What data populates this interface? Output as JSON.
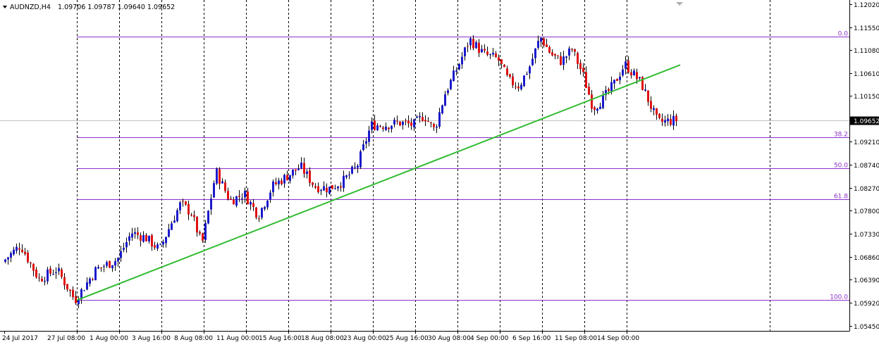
{
  "header": {
    "symbol": "AUDNZD,H4",
    "ohlc": "1.09706 1.09787 1.09640 1.09652"
  },
  "current_price_label": "1.09652",
  "colors": {
    "bull": "#1a1acc",
    "bear": "#e01010",
    "wick": "#000000",
    "fib": "#8b2fc9",
    "trend": "#33bb33",
    "grid": "#000000",
    "price_line": "#c0c0c0"
  },
  "chart_data": {
    "type": "candlestick",
    "title": "",
    "symbol": "AUDNZD",
    "timeframe": "H4",
    "ylim": [
      1.054,
      1.1202
    ],
    "grid": "vertical dashed",
    "y_ticks": [
      "1.12020",
      "1.11550",
      "1.11080",
      "1.10610",
      "1.10150",
      "1.09680",
      "1.09210",
      "1.08740",
      "1.08270",
      "1.07800",
      "1.07330",
      "1.06860",
      "1.06390",
      "1.05920",
      "1.05450"
    ],
    "x_ticks": [
      "24 Jul 2017",
      "27 Jul 08:00",
      "1 Aug 00:00",
      "3 Aug 16:00",
      "8 Aug 08:00",
      "11 Aug 00:00",
      "15 Aug 16:00",
      "18 Aug 08:00",
      "23 Aug 00:00",
      "25 Aug 16:00",
      "30 Aug 08:00",
      "4 Sep 00:00",
      "6 Sep 16:00",
      "11 Sep 08:00",
      "14 Sep 00:00"
    ],
    "fibonacci": [
      {
        "label": "0.0",
        "price": 1.1136
      },
      {
        "label": "38.2",
        "price": 1.093
      },
      {
        "label": "50.0",
        "price": 1.0867
      },
      {
        "label": "61.8",
        "price": 1.0803
      },
      {
        "label": "100.0",
        "price": 1.0597
      }
    ],
    "trendline": {
      "from": {
        "x": "27 Jul 08:00",
        "y": 1.0597
      },
      "to": {
        "x": "15 Sep 04:00",
        "y": 1.1078
      }
    },
    "current_price": 1.09652,
    "price_path": [
      {
        "x": "24 Jul 2017",
        "y": 1.0675
      },
      {
        "x": "25 Jul",
        "y": 1.071
      },
      {
        "x": "26 Jul",
        "y": 1.064
      },
      {
        "x": "27 Jul 00:00",
        "y": 1.066
      },
      {
        "x": "27 Jul 08:00",
        "y": 1.0597
      },
      {
        "x": "31 Jul",
        "y": 1.066
      },
      {
        "x": "1 Aug 00:00",
        "y": 1.068
      },
      {
        "x": "2 Aug",
        "y": 1.0735
      },
      {
        "x": "3 Aug",
        "y": 1.0725
      },
      {
        "x": "3 Aug 16:00",
        "y": 1.07
      },
      {
        "x": "4 Aug",
        "y": 1.075
      },
      {
        "x": "7 Aug",
        "y": 1.0795
      },
      {
        "x": "8 Aug 00:00",
        "y": 1.0775
      },
      {
        "x": "8 Aug 08:00",
        "y": 1.071
      },
      {
        "x": "9 Aug",
        "y": 1.086
      },
      {
        "x": "10 Aug",
        "y": 1.08
      },
      {
        "x": "11 Aug 00:00",
        "y": 1.0815
      },
      {
        "x": "14 Aug",
        "y": 1.077
      },
      {
        "x": "15 Aug",
        "y": 1.083
      },
      {
        "x": "15 Aug 16:00",
        "y": 1.085
      },
      {
        "x": "16 Aug",
        "y": 1.087
      },
      {
        "x": "17 Aug",
        "y": 1.083
      },
      {
        "x": "18 Aug 08:00",
        "y": 1.0825
      },
      {
        "x": "21 Aug",
        "y": 1.084
      },
      {
        "x": "22 Aug",
        "y": 1.087
      },
      {
        "x": "23 Aug 00:00",
        "y": 1.0955
      },
      {
        "x": "24 Aug",
        "y": 1.0955
      },
      {
        "x": "25 Aug",
        "y": 1.096
      },
      {
        "x": "25 Aug 16:00",
        "y": 1.0955
      },
      {
        "x": "28 Aug",
        "y": 1.0975
      },
      {
        "x": "29 Aug",
        "y": 1.0945
      },
      {
        "x": "29 Aug 12:00",
        "y": 1.102
      },
      {
        "x": "30 Aug 08:00",
        "y": 1.1065
      },
      {
        "x": "31 Aug",
        "y": 1.113
      },
      {
        "x": "1 Sep",
        "y": 1.11
      },
      {
        "x": "4 Sep 00:00",
        "y": 1.109
      },
      {
        "x": "5 Sep",
        "y": 1.1045
      },
      {
        "x": "5 Sep 12:00",
        "y": 1.1035
      },
      {
        "x": "6 Sep 00:00",
        "y": 1.1075
      },
      {
        "x": "6 Sep 16:00",
        "y": 1.1135
      },
      {
        "x": "7 Sep",
        "y": 1.11
      },
      {
        "x": "8 Sep",
        "y": 1.1085
      },
      {
        "x": "11 Sep 00:00",
        "y": 1.111
      },
      {
        "x": "11 Sep 08:00",
        "y": 1.106
      },
      {
        "x": "12 Sep",
        "y": 1.099
      },
      {
        "x": "13 Sep",
        "y": 1.101
      },
      {
        "x": "13 Sep 12:00",
        "y": 1.104
      },
      {
        "x": "14 Sep 00:00",
        "y": 1.108
      },
      {
        "x": "14 Sep 16:00",
        "y": 1.104
      },
      {
        "x": "15 Sep 00:00",
        "y": 1.096
      },
      {
        "x": "15 Sep 04:00",
        "y": 1.0965
      }
    ]
  }
}
